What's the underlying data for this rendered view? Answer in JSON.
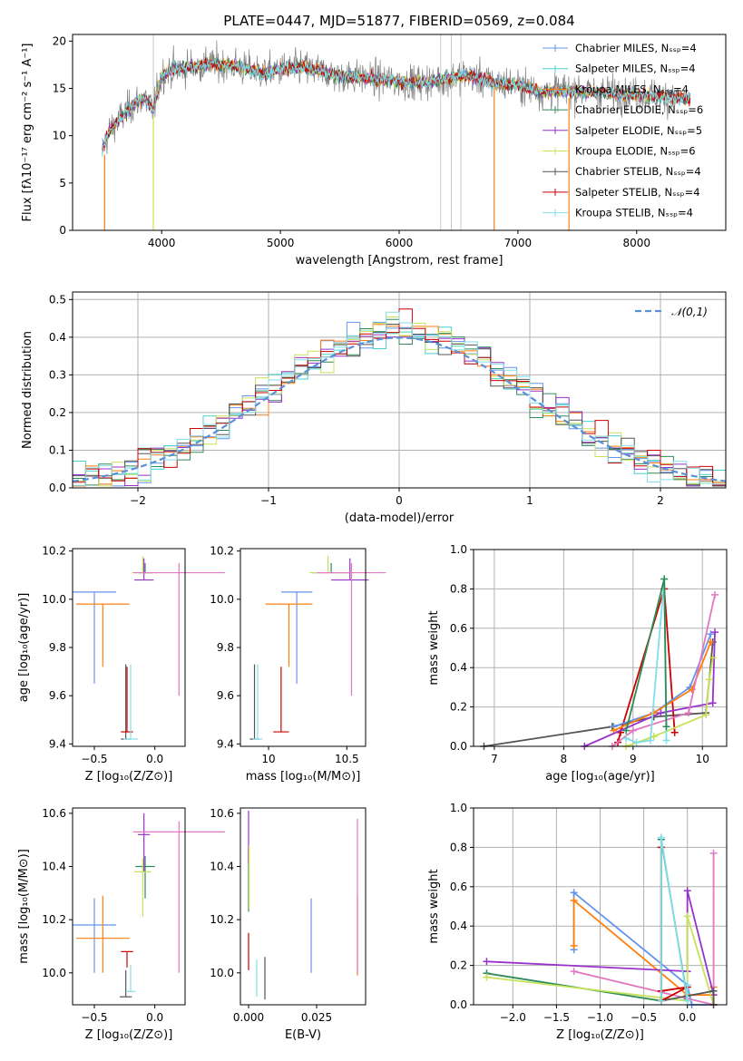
{
  "figure_title": "PLATE=0447, MJD=51877, FIBERID=0569, z=0.084",
  "colors": {
    "chabrier_miles": "#6495ed",
    "salpeter_miles": "#48d1cc",
    "kroupa_miles": "#ff7f0e",
    "chabrier_elodie": "#2e8b57",
    "salpeter_elodie": "#9932cc",
    "kroupa_elodie": "#d4e157",
    "chabrier_stelib": "#555555",
    "salpeter_stelib": "#cc0000",
    "kroupa_stelib": "#80deea",
    "pink": "#e377c2",
    "yellowgreen": "#c6e25a",
    "data_grey": "#808080",
    "gaussian": "#5b8fd9",
    "grid": "#b0b0b0"
  },
  "chart_data": [
    {
      "id": "spectrum",
      "type": "line",
      "title": "PLATE=0447, MJD=51877, FIBERID=0569, z=0.084",
      "xlabel": "wavelength [Angstrom, rest frame]",
      "ylabel": "Flux [fλ10⁻¹⁷ erg cm⁻² s⁻¹ A⁻¹]",
      "xlim": [
        3250,
        8750
      ],
      "ylim": [
        0,
        20.7
      ],
      "xticks": [
        4000,
        5000,
        6000,
        7000,
        8000
      ],
      "yticks": [
        0,
        5,
        10,
        15,
        20
      ],
      "grid": false,
      "legend_placement": "right",
      "legend": [
        "Chabrier MILES, Nₛₛₚ=4",
        "Salpeter MILES, Nₛₛₚ=4",
        "Kroupa MILES, Nₛₛₚ=4",
        "Chabrier ELODIE, Nₛₛₚ=6",
        "Salpeter ELODIE, Nₛₛₚ=5",
        "Kroupa ELODIE, Nₛₛₚ=6",
        "Chabrier STELIB, Nₛₛₚ=4",
        "Salpeter STELIB, Nₛₛₚ=4",
        "Kroupa STELIB, Nₛₛₚ=4"
      ],
      "legend_colors": [
        "#6495ed",
        "#48d1cc",
        "#ff7f0e",
        "#2e8b57",
        "#9932cc",
        "#d4e157",
        "#555555",
        "#cc0000",
        "#80deea"
      ],
      "spectrum_profile": {
        "x": [
          3500,
          3560,
          3650,
          3750,
          3850,
          3930,
          4000,
          4100,
          4200,
          4400,
          4600,
          4861,
          5000,
          5200,
          5500,
          5800,
          6100,
          6300,
          6563,
          6800,
          7000,
          7200,
          7400
        ],
        "y": [
          8.5,
          10.5,
          11.8,
          13.2,
          14.0,
          12.8,
          16.4,
          17.0,
          17.2,
          17.6,
          17.4,
          16.6,
          17.0,
          17.2,
          16.3,
          16.0,
          15.6,
          15.8,
          16.4,
          15.6,
          15.4,
          14.6,
          14.8
        ]
      },
      "model_extent": [
        3500,
        8450
      ]
    },
    {
      "id": "residuals",
      "type": "line",
      "xlabel": "(data-model)/error",
      "ylabel": "Normed distribution",
      "xlim": [
        -2.5,
        2.5
      ],
      "ylim": [
        0,
        0.52
      ],
      "xticks": [
        -2,
        -1,
        0,
        1,
        2
      ],
      "yticks": [
        0.0,
        0.1,
        0.2,
        0.3,
        0.4,
        0.5
      ],
      "grid": true,
      "legend": [
        "𝒩(0,1)"
      ],
      "legend_placement": "top-right",
      "gaussian": {
        "mean": 0,
        "sigma": 1
      },
      "histogram_bins": [
        -2.5,
        2.5,
        50
      ]
    },
    {
      "id": "age_vs_Z",
      "type": "scatter",
      "xlabel": "Z [log₁₀(Z/Z⊙)]",
      "ylabel": "age  [log₁₀(age/yr)]",
      "xlim": [
        -0.68,
        0.25
      ],
      "ylim": [
        9.39,
        10.21
      ],
      "xticks": [
        -0.5,
        0.0
      ],
      "xticklabels": [
        "−0.5",
        "0.0"
      ],
      "yticks": [
        9.4,
        9.6,
        9.8,
        10.0,
        10.2
      ],
      "grid": false,
      "points": [
        {
          "x": -0.5,
          "y": 10.03,
          "xerr": 0.18,
          "yerr_lo": 0.38,
          "yerr_hi": 0.0,
          "color": "#6495ed"
        },
        {
          "x": -0.43,
          "y": 9.98,
          "xerr": 0.22,
          "yerr_lo": 0.26,
          "yerr_hi": 0.0,
          "color": "#ff7f0e"
        },
        {
          "x": -0.08,
          "y": 10.11,
          "xerr": 0.06,
          "yerr_lo": 0.0,
          "yerr_hi": 0.04,
          "color": "#2e8b57"
        },
        {
          "x": -0.09,
          "y": 10.08,
          "xerr": 0.08,
          "yerr_lo": 0.0,
          "yerr_hi": 0.09,
          "color": "#9932cc"
        },
        {
          "x": -0.1,
          "y": 10.11,
          "xerr": 0.09,
          "yerr_lo": 0.0,
          "yerr_hi": 0.07,
          "color": "#c6e25a"
        },
        {
          "x": -0.24,
          "y": 9.42,
          "xerr": 0.04,
          "yerr_lo": 0.0,
          "yerr_hi": 0.31,
          "color": "#555555"
        },
        {
          "x": -0.23,
          "y": 9.45,
          "xerr": 0.05,
          "yerr_lo": 0.0,
          "yerr_hi": 0.27,
          "color": "#cc0000"
        },
        {
          "x": -0.2,
          "y": 9.42,
          "xerr": 0.06,
          "yerr_lo": 0.0,
          "yerr_hi": 0.31,
          "color": "#80deea"
        },
        {
          "x": 0.2,
          "y": 10.11,
          "xerr": 0.38,
          "yerr_lo": 0.51,
          "yerr_hi": 0.04,
          "color": "#e377c2"
        }
      ]
    },
    {
      "id": "age_vs_mass",
      "type": "scatter",
      "xlabel": "mass [log₁₀(M/M⊙)]",
      "ylabel": "",
      "xlim": [
        9.82,
        10.62
      ],
      "ylim": [
        9.39,
        10.21
      ],
      "xticks": [
        10,
        10.5
      ],
      "xticklabels": [
        "10",
        "10.5"
      ],
      "yticks": [
        9.4,
        9.6,
        9.8,
        10.0,
        10.2
      ],
      "grid": false,
      "points": [
        {
          "x": 10.18,
          "y": 10.03,
          "xerr": 0.1,
          "yerr_lo": 0.38,
          "yerr_hi": 0.0,
          "color": "#6495ed"
        },
        {
          "x": 10.13,
          "y": 9.98,
          "xerr": 0.15,
          "yerr_lo": 0.26,
          "yerr_hi": 0.0,
          "color": "#ff7f0e"
        },
        {
          "x": 10.4,
          "y": 10.11,
          "xerr": 0.12,
          "yerr_lo": 0.0,
          "yerr_hi": 0.04,
          "color": "#2e8b57"
        },
        {
          "x": 10.52,
          "y": 10.08,
          "xerr": 0.12,
          "yerr_lo": 0.0,
          "yerr_hi": 0.09,
          "color": "#9932cc"
        },
        {
          "x": 10.38,
          "y": 10.11,
          "xerr": 0.12,
          "yerr_lo": 0.0,
          "yerr_hi": 0.07,
          "color": "#c6e25a"
        },
        {
          "x": 9.91,
          "y": 9.42,
          "xerr": 0.03,
          "yerr_lo": 0.0,
          "yerr_hi": 0.31,
          "color": "#555555"
        },
        {
          "x": 10.08,
          "y": 9.45,
          "xerr": 0.05,
          "yerr_lo": 0.0,
          "yerr_hi": 0.27,
          "color": "#cc0000"
        },
        {
          "x": 9.93,
          "y": 9.42,
          "xerr": 0.03,
          "yerr_lo": 0.0,
          "yerr_hi": 0.31,
          "color": "#80deea"
        },
        {
          "x": 10.53,
          "y": 10.11,
          "xerr": 0.22,
          "yerr_lo": 0.51,
          "yerr_hi": 0.04,
          "color": "#e377c2"
        }
      ]
    },
    {
      "id": "weight_vs_age",
      "type": "line",
      "xlabel": "age  [log₁₀(age/yr)]",
      "ylabel": "mass weight",
      "xlim": [
        6.7,
        10.35
      ],
      "ylim": [
        0,
        1.0
      ],
      "xticks": [
        7,
        8,
        9,
        10
      ],
      "yticks": [
        0.0,
        0.2,
        0.4,
        0.6,
        0.8,
        1.0
      ],
      "grid": true,
      "series": [
        {
          "color": "#555555",
          "x": [
            6.85,
            8.7,
            9.3,
            10.05,
            10.1,
            10.15
          ],
          "y": [
            0.0,
            0.1,
            0.15,
            0.17,
            0.34,
            0.53
          ]
        },
        {
          "color": "#cc0000",
          "x": [
            8.78,
            8.82,
            9.45,
            9.6
          ],
          "y": [
            0.02,
            0.07,
            0.8,
            0.07
          ]
        },
        {
          "color": "#6495ed",
          "x": [
            8.72,
            9.3,
            9.82,
            10.12
          ],
          "y": [
            0.1,
            0.17,
            0.3,
            0.57
          ]
        },
        {
          "color": "#ff7f0e",
          "x": [
            8.72,
            9.3,
            9.85,
            10.12
          ],
          "y": [
            0.08,
            0.17,
            0.29,
            0.53
          ]
        },
        {
          "color": "#9932cc",
          "x": [
            8.3,
            9.4,
            10.15,
            10.18
          ],
          "y": [
            0.0,
            0.17,
            0.22,
            0.58
          ]
        },
        {
          "color": "#c6e25a",
          "x": [
            8.9,
            9.3,
            10.05,
            10.1,
            10.15
          ],
          "y": [
            0.0,
            0.05,
            0.16,
            0.34,
            0.45
          ]
        },
        {
          "color": "#e377c2",
          "x": [
            8.7,
            9.0,
            9.8,
            10.18
          ],
          "y": [
            0.0,
            0.08,
            0.17,
            0.77
          ]
        },
        {
          "color": "#80deea",
          "x": [
            8.9,
            9.05,
            9.25,
            9.45,
            9.48
          ],
          "y": [
            0.04,
            0.02,
            0.03,
            0.85,
            0.03
          ]
        },
        {
          "color": "#2e8b57",
          "x": [
            8.9,
            9.45,
            9.48
          ],
          "y": [
            0.08,
            0.85,
            0.1
          ]
        }
      ]
    },
    {
      "id": "mass_vs_Z",
      "type": "scatter",
      "xlabel": "Z [log₁₀(Z/Z⊙)]",
      "ylabel": "mass [log₁₀(M/M⊙)]",
      "xlim": [
        -0.68,
        0.25
      ],
      "ylim": [
        9.88,
        10.62
      ],
      "xticks": [
        -0.5,
        0.0
      ],
      "xticklabels": [
        "−0.5",
        "0.0"
      ],
      "yticks": [
        10.0,
        10.2,
        10.4,
        10.6
      ],
      "grid": false,
      "points": [
        {
          "x": -0.5,
          "y": 10.18,
          "xerr": 0.18,
          "yerr_lo": 0.18,
          "yerr_hi": 0.1,
          "color": "#6495ed"
        },
        {
          "x": -0.43,
          "y": 10.13,
          "xerr": 0.22,
          "yerr_lo": 0.13,
          "yerr_hi": 0.16,
          "color": "#ff7f0e"
        },
        {
          "x": -0.08,
          "y": 10.4,
          "xerr": 0.08,
          "yerr_lo": 0.12,
          "yerr_hi": 0.04,
          "color": "#2e8b57"
        },
        {
          "x": -0.09,
          "y": 10.52,
          "xerr": 0.05,
          "yerr_lo": 0.14,
          "yerr_hi": 0.08,
          "color": "#9932cc"
        },
        {
          "x": -0.1,
          "y": 10.38,
          "xerr": 0.07,
          "yerr_lo": 0.17,
          "yerr_hi": 0.05,
          "color": "#c6e25a"
        },
        {
          "x": -0.24,
          "y": 9.91,
          "xerr": 0.05,
          "yerr_lo": 0.0,
          "yerr_hi": 0.1,
          "color": "#555555"
        },
        {
          "x": -0.23,
          "y": 10.08,
          "xerr": 0.05,
          "yerr_lo": 0.06,
          "yerr_hi": 0.0,
          "color": "#cc0000"
        },
        {
          "x": -0.2,
          "y": 9.93,
          "xerr": 0.04,
          "yerr_lo": 0.0,
          "yerr_hi": 0.1,
          "color": "#80deea"
        },
        {
          "x": 0.2,
          "y": 10.53,
          "xerr": 0.38,
          "yerr_lo": 0.53,
          "yerr_hi": 0.04,
          "color": "#e377c2"
        }
      ]
    },
    {
      "id": "mass_vs_EBV",
      "type": "scatter",
      "xlabel": "E(B-V)",
      "ylabel": "",
      "xlim": [
        -0.003,
        0.043
      ],
      "ylim": [
        9.88,
        10.62
      ],
      "xticks": [
        0.0,
        0.025
      ],
      "xticklabels": [
        "0.000",
        "0.025"
      ],
      "yticks": [
        10.0,
        10.2,
        10.4,
        10.6
      ],
      "grid": false,
      "points": [
        {
          "x": 0.023,
          "y": 10.14,
          "yerr_lo": 0.14,
          "yerr_hi": 0.14,
          "color": "#6495ed"
        },
        {
          "x": 0.04,
          "y": 10.14,
          "yerr_lo": 0.15,
          "yerr_hi": 0.15,
          "color": "#ff7f0e"
        },
        {
          "x": 0.0,
          "y": 10.35,
          "yerr_lo": 0.12,
          "yerr_hi": 0.12,
          "color": "#2e8b57"
        },
        {
          "x": 0.0,
          "y": 10.51,
          "yerr_lo": 0.1,
          "yerr_hi": 0.1,
          "color": "#9932cc"
        },
        {
          "x": 0.0002,
          "y": 10.36,
          "yerr_lo": 0.12,
          "yerr_hi": 0.12,
          "color": "#c6e25a"
        },
        {
          "x": 0.006,
          "y": 9.98,
          "yerr_lo": 0.08,
          "yerr_hi": 0.08,
          "color": "#555555"
        },
        {
          "x": 0.0,
          "y": 10.08,
          "yerr_lo": 0.07,
          "yerr_hi": 0.07,
          "color": "#cc0000"
        },
        {
          "x": 0.003,
          "y": 9.98,
          "yerr_lo": 0.07,
          "yerr_hi": 0.07,
          "color": "#80deea"
        },
        {
          "x": 0.04,
          "y": 10.29,
          "yerr_lo": 0.29,
          "yerr_hi": 0.29,
          "color": "#e377c2"
        }
      ]
    },
    {
      "id": "weight_vs_Z",
      "type": "line",
      "xlabel": "Z [log₁₀(Z/Z⊙)]",
      "ylabel": "mass weight",
      "xlim": [
        -2.45,
        0.45
      ],
      "ylim": [
        0,
        1.0
      ],
      "xticks": [
        -2.0,
        -1.5,
        -1.0,
        -0.5,
        0.0
      ],
      "xticklabels": [
        "−2.0",
        "−1.5",
        "−1.0",
        "−0.5",
        "0.0"
      ],
      "yticks": [
        0.0,
        0.2,
        0.4,
        0.6,
        0.8,
        1.0
      ],
      "grid": true,
      "series": [
        {
          "color": "#6495ed",
          "x": [
            -1.3,
            -1.3,
            0.0,
            0.05,
            0.3
          ],
          "y": [
            0.28,
            0.57,
            0.1,
            0.0,
            0.0
          ]
        },
        {
          "color": "#ff7f0e",
          "x": [
            -1.3,
            -1.3,
            0.0,
            0.3,
            0.3
          ],
          "y": [
            0.3,
            0.53,
            0.05,
            0.05,
            0.09
          ]
        },
        {
          "color": "#9932cc",
          "x": [
            -2.3,
            0.0,
            0.0,
            0.3
          ],
          "y": [
            0.22,
            0.17,
            0.58,
            0.05
          ]
        },
        {
          "color": "#2e8b57",
          "x": [
            -2.3,
            -0.3,
            -0.3,
            0.0
          ],
          "y": [
            0.16,
            0.02,
            0.84,
            0.03
          ]
        },
        {
          "color": "#c6e25a",
          "x": [
            -2.3,
            0.0,
            0.0,
            0.3
          ],
          "y": [
            0.14,
            0.02,
            0.45,
            0.0
          ]
        },
        {
          "color": "#e377c2",
          "x": [
            -1.3,
            0.3,
            0.3
          ],
          "y": [
            0.17,
            0.0,
            0.77
          ]
        },
        {
          "color": "#555555",
          "x": [
            -0.3,
            0.3,
            0.3
          ],
          "y": [
            0.02,
            0.07,
            0.0
          ]
        },
        {
          "color": "#cc0000",
          "x": [
            -0.3,
            0.0,
            -0.3,
            -0.3
          ],
          "y": [
            0.07,
            0.09,
            0.02,
            0.8
          ]
        },
        {
          "color": "#80deea",
          "x": [
            -0.3,
            -0.3,
            0.0,
            0.0
          ],
          "y": [
            0.02,
            0.85,
            0.02,
            0.1
          ]
        }
      ]
    }
  ]
}
